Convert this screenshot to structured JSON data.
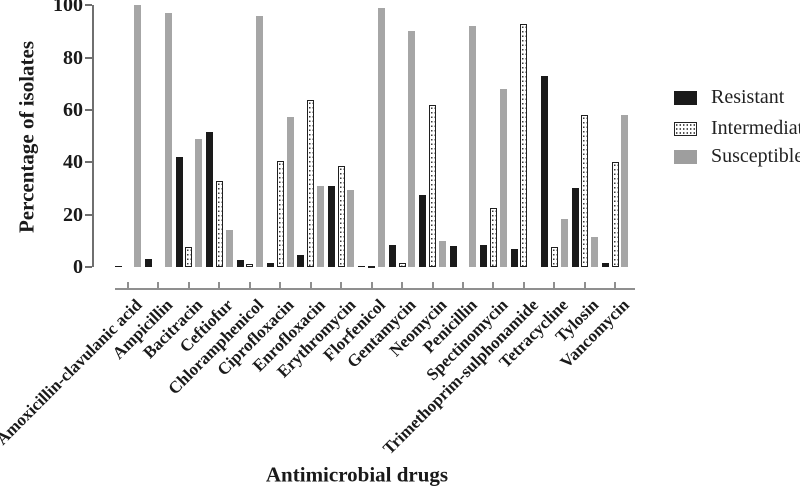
{
  "figure": {
    "background": "#ffffff",
    "axis_color": "#6f6f6f",
    "text_color": "#1a1a1a"
  },
  "chart_data": {
    "type": "bar",
    "title": "",
    "xlabel": "Antimicrobial drugs",
    "ylabel": "Percentage of isolates",
    "ylim": [
      0,
      100
    ],
    "yticks": [
      0,
      20,
      40,
      60,
      80,
      100
    ],
    "grid": false,
    "legend_position": "right",
    "categories": [
      "Amoxicillin-clavulanic acid",
      "Ampicillin",
      "Bacitracin",
      "Ceftiofur",
      "Chloramphenicol",
      "Ciprofloxacin",
      "Enrofloxacin",
      "Erythromycin",
      "Florfenicol",
      "Gentamycin",
      "Neomycin",
      "Penicillin",
      "Spectinomycin",
      "Trimethoprim-sulphonamide",
      "Tetracycline",
      "Tylosin",
      "Vancomycin"
    ],
    "series": [
      {
        "name": "Resistant",
        "style": "solid-black",
        "color": "#1a1a1a",
        "values": [
          0.5,
          3,
          42,
          51.5,
          2.5,
          1.5,
          4.5,
          31,
          0.5,
          8.5,
          27.5,
          8,
          8.5,
          7,
          73,
          30,
          1.5
        ]
      },
      {
        "name": "Intermediate",
        "style": "dotted-white",
        "color": "#ffffff",
        "dot_color": "#3a3a3a",
        "border_color": "#1f1f1f",
        "values": [
          0,
          0,
          7.5,
          33,
          1,
          40.5,
          64,
          38.5,
          0.5,
          1.5,
          62,
          0,
          22.5,
          93,
          7.5,
          58,
          40
        ]
      },
      {
        "name": "Susceptible",
        "style": "solid-gray",
        "color": "#a6a6a6",
        "values": [
          100,
          97,
          49,
          14,
          96,
          57.5,
          31,
          29.5,
          99,
          90,
          10,
          92,
          68,
          0,
          18.5,
          11.5,
          58
        ]
      }
    ]
  }
}
